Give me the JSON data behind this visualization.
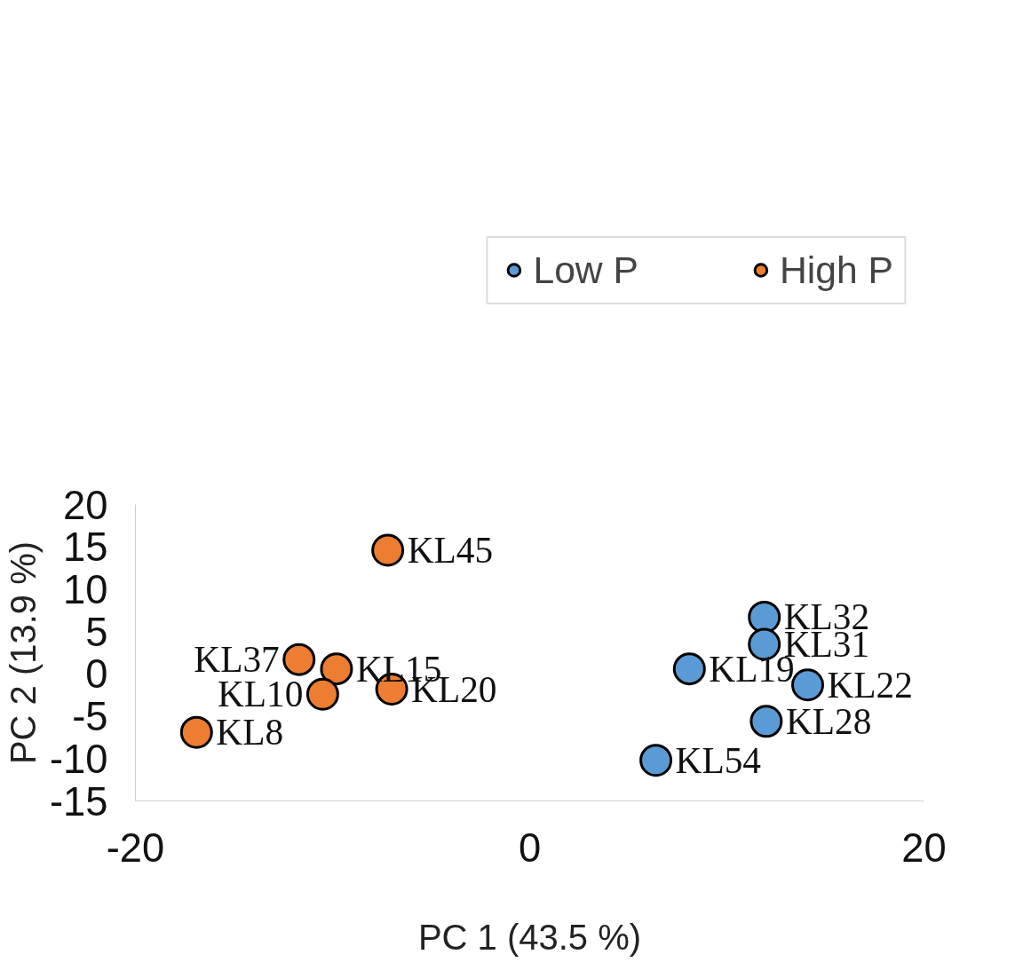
{
  "chart_data": {
    "type": "scatter",
    "xlabel": "PC 1 (43.5 %)",
    "ylabel": "PC 2 (13.9 %)",
    "xlim": [
      -20,
      20
    ],
    "ylim": [
      -15,
      20
    ],
    "xticks": [
      -20,
      0,
      20
    ],
    "yticks": [
      -15,
      -10,
      -5,
      0,
      5,
      10,
      15,
      20
    ],
    "grid": false,
    "legend": "top",
    "marker": "circle",
    "series": [
      {
        "name": "Low P",
        "color": "#5b9bd5",
        "x": [
          11.9,
          11.9,
          8.1,
          14.1,
          12.0,
          6.4
        ],
        "values": [
          6.7,
          3.5,
          0.6,
          -1.3,
          -5.6,
          -10.2
        ]
      },
      {
        "name": "High P",
        "color": "#ed7d31",
        "x": [
          -7.2,
          -11.7,
          -9.8,
          -10.5,
          -7.0,
          -16.9
        ],
        "values": [
          14.6,
          1.7,
          0.6,
          -2.4,
          -1.8,
          -6.9
        ]
      }
    ],
    "annotations": [
      {
        "text": "KL32",
        "x": 11.9,
        "y": 6.7
      },
      {
        "text": "KL31",
        "x": 11.9,
        "y": 3.5
      },
      {
        "text": "KL19",
        "x": 8.1,
        "y": 0.6
      },
      {
        "text": "KL22",
        "x": 14.1,
        "y": -1.3
      },
      {
        "text": "KL28",
        "x": 12.0,
        "y": -5.6
      },
      {
        "text": "KL54",
        "x": 6.4,
        "y": -10.2
      },
      {
        "text": "KL45",
        "x": -7.2,
        "y": 14.6
      },
      {
        "text": "KL37",
        "x": -11.7,
        "y": 1.7
      },
      {
        "text": "KL15",
        "x": -9.8,
        "y": 0.6
      },
      {
        "text": "KL10",
        "x": -10.5,
        "y": -2.4
      },
      {
        "text": "KL20",
        "x": -7.0,
        "y": -1.8
      },
      {
        "text": "KL8",
        "x": -16.9,
        "y": -6.9
      }
    ]
  }
}
